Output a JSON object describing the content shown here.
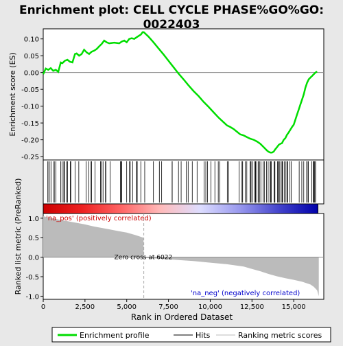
{
  "chart_data": {
    "type": "line",
    "title": "Enrichment plot: CELL CYCLE PHASE%GO%GO:0022403",
    "es_panel": {
      "ylabel": "Enrichment score (ES)",
      "ylim": [
        -0.26,
        0.13
      ],
      "yticks": [
        -0.25,
        -0.2,
        -0.15,
        -0.1,
        -0.05,
        0.0,
        0.05,
        0.1
      ],
      "ytick_labels": [
        "-0.25",
        "-0.20",
        "-0.15",
        "-0.10",
        "-0.05",
        "0.00",
        "0.05",
        "0.10"
      ],
      "line_color": "#00dd00",
      "series": {
        "name": "Enrichment profile",
        "x": [
          0,
          150,
          300,
          450,
          600,
          750,
          900,
          1050,
          1150,
          1300,
          1450,
          1600,
          1750,
          1900,
          2000,
          2150,
          2300,
          2450,
          2600,
          2750,
          2900,
          3050,
          3200,
          3350,
          3500,
          3650,
          3800,
          3950,
          4100,
          4250,
          4400,
          4550,
          4700,
          4850,
          5000,
          5150,
          5300,
          5450,
          5600,
          5750,
          5850,
          5950,
          6022,
          6300,
          6600,
          6900,
          7200,
          7500,
          7800,
          8100,
          8400,
          8700,
          9000,
          9300,
          9600,
          9900,
          10200,
          10500,
          10800,
          11000,
          11200,
          11400,
          11600,
          11800,
          12000,
          12200,
          12400,
          12600,
          12800,
          13000,
          13200,
          13400,
          13500,
          13600,
          13700,
          13800,
          13900,
          14000,
          14100,
          14200,
          14300,
          14400,
          14500,
          14600,
          14700,
          14800,
          14900,
          15000,
          15100,
          15200,
          15300,
          15400,
          15500,
          15600,
          15700,
          15800,
          15900,
          16000,
          16100,
          16200,
          16300,
          16400
        ],
        "y": [
          -0.005,
          0.012,
          0.008,
          0.013,
          0.005,
          0.008,
          0.002,
          0.03,
          0.028,
          0.035,
          0.038,
          0.032,
          0.03,
          0.055,
          0.057,
          0.05,
          0.055,
          0.068,
          0.06,
          0.055,
          0.062,
          0.065,
          0.07,
          0.078,
          0.085,
          0.095,
          0.09,
          0.087,
          0.088,
          0.089,
          0.088,
          0.087,
          0.092,
          0.095,
          0.09,
          0.1,
          0.102,
          0.1,
          0.105,
          0.11,
          0.113,
          0.12,
          0.12,
          0.107,
          0.09,
          0.072,
          0.054,
          0.035,
          0.016,
          -0.003,
          -0.02,
          -0.038,
          -0.055,
          -0.07,
          -0.087,
          -0.102,
          -0.118,
          -0.134,
          -0.148,
          -0.157,
          -0.162,
          -0.168,
          -0.176,
          -0.184,
          -0.187,
          -0.192,
          -0.197,
          -0.2,
          -0.205,
          -0.212,
          -0.222,
          -0.232,
          -0.236,
          -0.238,
          -0.238,
          -0.235,
          -0.228,
          -0.222,
          -0.215,
          -0.212,
          -0.21,
          -0.2,
          -0.195,
          -0.185,
          -0.178,
          -0.17,
          -0.162,
          -0.155,
          -0.14,
          -0.125,
          -0.11,
          -0.095,
          -0.08,
          -0.065,
          -0.045,
          -0.03,
          -0.02,
          -0.015,
          -0.01,
          -0.005,
          0.0,
          0.003
        ]
      }
    },
    "hits_panel": {
      "legend_label": "Hits",
      "hits_per_zone": [
        18,
        14,
        12,
        8,
        10,
        35,
        22
      ]
    },
    "gradient_bar": {
      "colors": [
        "#cc0000",
        "#ee2222",
        "#ff6666",
        "#ffbbbb",
        "#ddddff",
        "#9999ee",
        "#4444cc",
        "#0000aa"
      ]
    },
    "metric_panel": {
      "ylabel": "Ranked list metric (PreRanked)",
      "ylim": [
        -1.08,
        1.12
      ],
      "yticks": [
        -1.0,
        -0.5,
        0.0,
        0.5,
        1.0
      ],
      "ytick_labels": [
        "-1.0",
        "-0.5",
        "0.0",
        "0.5",
        "1.0"
      ],
      "fill_color": "#bbbbbb",
      "series": {
        "name": "Ranking metric scores",
        "x": [
          0,
          500,
          1000,
          1500,
          2000,
          2500,
          3000,
          3500,
          4000,
          4500,
          5000,
          5500,
          6000,
          6022,
          6100,
          7000,
          8000,
          9000,
          10000,
          11000,
          12000,
          12500,
          13000,
          13500,
          14000,
          14500,
          15000,
          15500,
          16000,
          16200,
          16400,
          16500
        ],
        "y": [
          1.05,
          1.0,
          0.96,
          0.92,
          0.88,
          0.84,
          0.79,
          0.75,
          0.71,
          0.67,
          0.63,
          0.57,
          0.5,
          0.0,
          -0.02,
          -0.04,
          -0.07,
          -0.1,
          -0.14,
          -0.18,
          -0.24,
          -0.3,
          -0.36,
          -0.43,
          -0.49,
          -0.54,
          -0.58,
          -0.63,
          -0.7,
          -0.76,
          -0.85,
          -1.0
        ]
      },
      "pos_label": "'na_pos' (positively correlated)",
      "neg_label": "'na_neg' (negatively correlated)",
      "zero_cross_label": "Zero cross at 6022",
      "zero_cross": 6022
    },
    "xaxis": {
      "xlabel": "Rank in Ordered Dataset",
      "xlim": [
        0,
        16800
      ],
      "xticks": [
        0,
        2500,
        5000,
        7500,
        10000,
        12500,
        15000
      ],
      "xtick_labels": [
        "0",
        "2,500",
        "5,000",
        "7,500",
        "10,000",
        "12,500",
        "15,000"
      ]
    },
    "legend": {
      "placement": "bottom",
      "entries": [
        {
          "label": "Enrichment profile",
          "color": "#00dd00"
        },
        {
          "label": "Hits",
          "color": "#000000"
        },
        {
          "label": "Ranking metric scores",
          "color": "#bbbbbb"
        }
      ]
    }
  }
}
